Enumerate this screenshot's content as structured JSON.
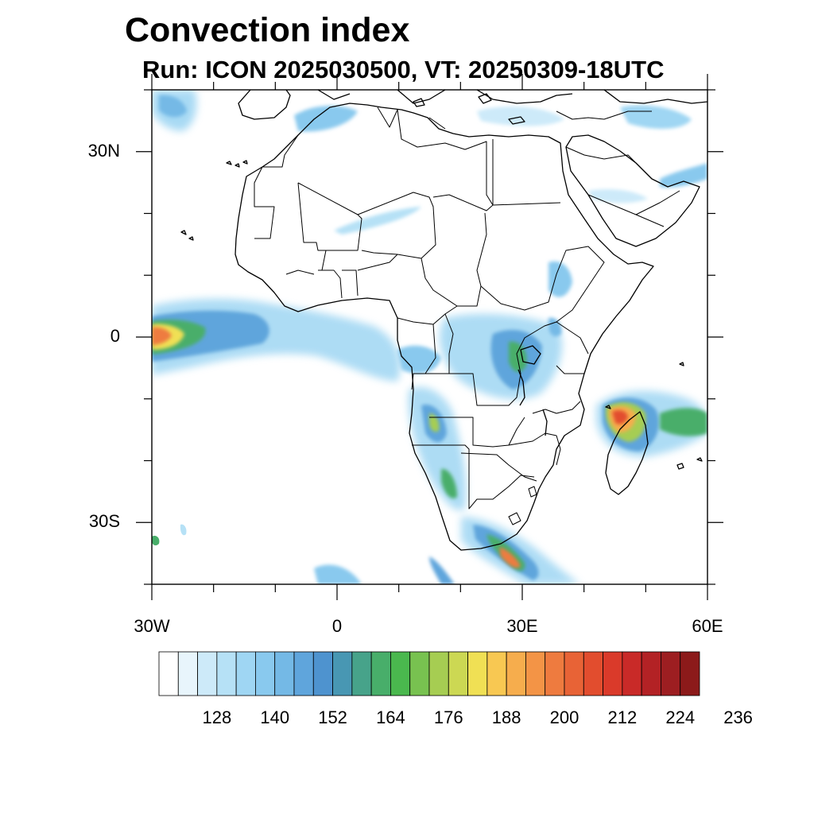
{
  "header": {
    "title": "Convection index",
    "subtitle": "Run: ICON 2025030500,  VT: 20250309-18UTC"
  },
  "axes": {
    "lon_range": [
      -30,
      60
    ],
    "lat_range": [
      -40,
      40
    ],
    "x_ticks": [
      {
        "value": -30,
        "label": "30W"
      },
      {
        "value": 0,
        "label": "0"
      },
      {
        "value": 30,
        "label": "30E"
      },
      {
        "value": 60,
        "label": "60E"
      }
    ],
    "y_ticks": [
      {
        "value": 30,
        "label": "30N"
      },
      {
        "value": 0,
        "label": "0"
      },
      {
        "value": -30,
        "label": "30S"
      }
    ]
  },
  "colorbar": {
    "colors": [
      "#ffffff",
      "#e8f5fc",
      "#cdeaf9",
      "#b6e1f6",
      "#9fd6f3",
      "#89c9ee",
      "#74b9e6",
      "#5fa5dc",
      "#4e93cf",
      "#4897b3",
      "#47a38a",
      "#48ae6a",
      "#4ab84e",
      "#78c250",
      "#a6cd52",
      "#ccd853",
      "#f0e054",
      "#f8c852",
      "#f6ad4d",
      "#f39446",
      "#ee7b3f",
      "#e86336",
      "#e24d2e",
      "#da3a2a",
      "#c92a28",
      "#b32225",
      "#9d1e21",
      "#8c1a1a"
    ],
    "labels": [
      "128",
      "140",
      "152",
      "164",
      "176",
      "188",
      "200",
      "212",
      "224",
      "236"
    ]
  }
}
